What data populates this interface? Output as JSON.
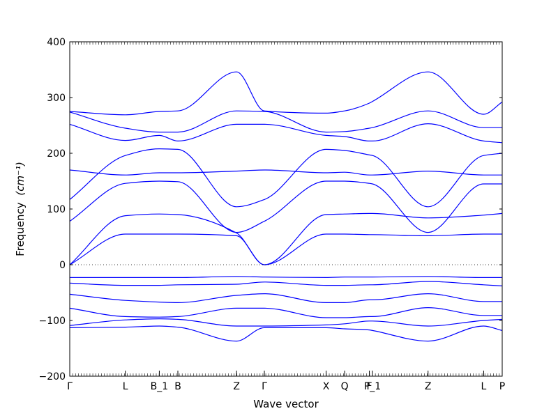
{
  "chart_data": {
    "type": "line",
    "xlabel": "Wave vector",
    "ylabel": "Frequency",
    "ylabel_unit": "(cm⁻¹)",
    "ylim": [
      -200,
      400
    ],
    "yticks": [
      400,
      300,
      200,
      100,
      0,
      -100,
      -200
    ],
    "xlim": [
      0,
      14
    ],
    "grid": false,
    "zero_line": true,
    "line_color": "#0000ff",
    "high_symmetry_points": [
      {
        "label": "Γ",
        "x": 0
      },
      {
        "label": "L",
        "x": 1.8
      },
      {
        "label": "B_1",
        "x": 2.9
      },
      {
        "label": "B",
        "x": 3.5
      },
      {
        "label": "Z",
        "x": 5.4
      },
      {
        "label": "Γ",
        "x": 6.3
      },
      {
        "label": "X",
        "x": 8.3
      },
      {
        "label": "Q",
        "x": 8.9
      },
      {
        "label": "F",
        "x": 9.7
      },
      {
        "label": "P_1",
        "x": 9.8
      },
      {
        "label": "Z",
        "x": 11.6
      },
      {
        "label": "L",
        "x": 13.4
      },
      {
        "label": "P",
        "x": 14
      }
    ],
    "series": [
      {
        "points": [
          [
            0,
            -113
          ],
          [
            1.8,
            -112
          ],
          [
            2.9,
            -110
          ],
          [
            3.5,
            -112
          ],
          [
            5.4,
            -137
          ],
          [
            6.3,
            -113
          ],
          [
            8.3,
            -113
          ],
          [
            8.9,
            -115
          ],
          [
            9.7,
            -117
          ],
          [
            9.8,
            -118
          ],
          [
            11.6,
            -137
          ],
          [
            13.4,
            -110
          ],
          [
            14,
            -118
          ]
        ]
      },
      {
        "points": [
          [
            0,
            -109
          ],
          [
            1.8,
            -99
          ],
          [
            2.9,
            -97
          ],
          [
            3.5,
            -98
          ],
          [
            5.4,
            -110
          ],
          [
            6.3,
            -110
          ],
          [
            8.3,
            -108
          ],
          [
            8.9,
            -106
          ],
          [
            9.7,
            -101
          ],
          [
            9.8,
            -101
          ],
          [
            11.6,
            -110
          ],
          [
            13.4,
            -100
          ],
          [
            14,
            -98
          ]
        ]
      },
      {
        "points": [
          [
            0,
            -78
          ],
          [
            1.8,
            -93
          ],
          [
            2.9,
            -94
          ],
          [
            3.5,
            -93
          ],
          [
            5.4,
            -78
          ],
          [
            6.3,
            -78
          ],
          [
            8.3,
            -95
          ],
          [
            8.9,
            -95
          ],
          [
            9.7,
            -93
          ],
          [
            9.8,
            -93
          ],
          [
            11.6,
            -77
          ],
          [
            13.4,
            -91
          ],
          [
            14,
            -91
          ]
        ]
      },
      {
        "points": [
          [
            0,
            -53
          ],
          [
            1.8,
            -64
          ],
          [
            2.9,
            -67
          ],
          [
            3.5,
            -68
          ],
          [
            5.4,
            -55
          ],
          [
            6.3,
            -52
          ],
          [
            8.3,
            -68
          ],
          [
            8.9,
            -68
          ],
          [
            9.7,
            -63
          ],
          [
            9.8,
            -63
          ],
          [
            11.6,
            -52
          ],
          [
            13.4,
            -66
          ],
          [
            14,
            -66
          ]
        ]
      },
      {
        "points": [
          [
            0,
            -33
          ],
          [
            1.8,
            -37
          ],
          [
            2.9,
            -37
          ],
          [
            3.5,
            -36
          ],
          [
            5.4,
            -35
          ],
          [
            6.3,
            -31
          ],
          [
            8.3,
            -37
          ],
          [
            8.9,
            -37
          ],
          [
            9.7,
            -36
          ],
          [
            9.8,
            -36
          ],
          [
            11.6,
            -30
          ],
          [
            13.4,
            -36
          ],
          [
            14,
            -38
          ]
        ]
      },
      {
        "points": [
          [
            0,
            -23
          ],
          [
            1.8,
            -23
          ],
          [
            2.9,
            -23
          ],
          [
            3.5,
            -23
          ],
          [
            5.4,
            -21
          ],
          [
            6.3,
            -22
          ],
          [
            8.3,
            -23
          ],
          [
            8.9,
            -22
          ],
          [
            9.7,
            -22
          ],
          [
            9.8,
            -22
          ],
          [
            11.6,
            -21
          ],
          [
            13.4,
            -23
          ],
          [
            14,
            -23
          ]
        ]
      },
      {
        "points": [
          [
            0,
            0
          ],
          [
            1.8,
            55
          ],
          [
            2.9,
            55
          ],
          [
            3.5,
            55
          ],
          [
            5.4,
            52
          ],
          [
            6.3,
            0
          ],
          [
            8.3,
            55
          ],
          [
            8.9,
            55
          ],
          [
            9.7,
            54
          ],
          [
            9.8,
            54
          ],
          [
            11.6,
            52
          ],
          [
            13.4,
            55
          ],
          [
            14,
            55
          ]
        ]
      },
      {
        "points": [
          [
            0,
            0
          ],
          [
            1.8,
            88
          ],
          [
            2.9,
            91
          ],
          [
            3.5,
            90
          ],
          [
            5.4,
            57
          ],
          [
            6.3,
            0
          ],
          [
            8.3,
            90
          ],
          [
            8.9,
            91
          ],
          [
            9.7,
            92
          ],
          [
            9.8,
            92
          ],
          [
            11.6,
            84
          ],
          [
            13.4,
            89
          ],
          [
            14,
            92
          ]
        ]
      },
      {
        "points": [
          [
            0,
            78
          ],
          [
            1.8,
            146
          ],
          [
            2.9,
            150
          ],
          [
            3.5,
            149
          ],
          [
            5.4,
            58
          ],
          [
            6.3,
            78
          ],
          [
            8.3,
            150
          ],
          [
            8.9,
            150
          ],
          [
            9.7,
            146
          ],
          [
            9.8,
            145
          ],
          [
            11.6,
            58
          ],
          [
            13.4,
            145
          ],
          [
            14,
            145
          ]
        ]
      },
      {
        "points": [
          [
            0,
            117
          ],
          [
            1.8,
            196
          ],
          [
            2.9,
            208
          ],
          [
            3.5,
            207
          ],
          [
            5.4,
            104
          ],
          [
            6.3,
            117
          ],
          [
            8.3,
            207
          ],
          [
            8.9,
            205
          ],
          [
            9.7,
            197
          ],
          [
            9.8,
            196
          ],
          [
            11.6,
            104
          ],
          [
            13.4,
            196
          ],
          [
            14,
            200
          ]
        ]
      },
      {
        "points": [
          [
            0,
            170
          ],
          [
            1.8,
            161
          ],
          [
            2.9,
            165
          ],
          [
            3.5,
            165
          ],
          [
            5.4,
            168
          ],
          [
            6.3,
            170
          ],
          [
            8.3,
            165
          ],
          [
            8.9,
            166
          ],
          [
            9.7,
            161
          ],
          [
            9.8,
            161
          ],
          [
            11.6,
            168
          ],
          [
            13.4,
            161
          ],
          [
            14,
            161
          ]
        ]
      },
      {
        "points": [
          [
            0,
            252
          ],
          [
            1.8,
            223
          ],
          [
            2.9,
            232
          ],
          [
            3.5,
            222
          ],
          [
            5.4,
            252
          ],
          [
            6.3,
            252
          ],
          [
            8.3,
            232
          ],
          [
            8.9,
            230
          ],
          [
            9.7,
            222
          ],
          [
            9.8,
            222
          ],
          [
            11.6,
            253
          ],
          [
            13.4,
            222
          ],
          [
            14,
            219
          ]
        ]
      },
      {
        "points": [
          [
            0,
            274
          ],
          [
            1.8,
            245
          ],
          [
            2.9,
            238
          ],
          [
            3.5,
            238
          ],
          [
            5.4,
            276
          ],
          [
            6.3,
            275
          ],
          [
            8.3,
            238
          ],
          [
            8.9,
            239
          ],
          [
            9.7,
            245
          ],
          [
            9.8,
            246
          ],
          [
            11.6,
            276
          ],
          [
            13.4,
            246
          ],
          [
            14,
            246
          ]
        ]
      },
      {
        "points": [
          [
            0,
            275
          ],
          [
            1.8,
            269
          ],
          [
            2.9,
            275
          ],
          [
            3.5,
            276
          ],
          [
            5.4,
            346
          ],
          [
            6.3,
            276
          ],
          [
            8.3,
            272
          ],
          [
            8.9,
            276
          ],
          [
            9.7,
            290
          ],
          [
            9.8,
            293
          ],
          [
            11.6,
            346
          ],
          [
            13.4,
            270
          ],
          [
            14,
            292
          ]
        ]
      }
    ]
  }
}
